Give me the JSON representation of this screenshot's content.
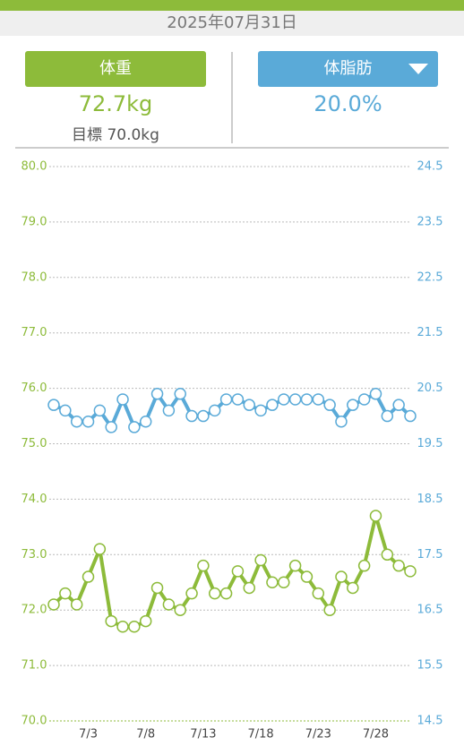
{
  "header": {
    "date": "2025年07月31日"
  },
  "weight_tab": {
    "label": "体重",
    "value": "72.7kg",
    "target": "目標 70.0kg"
  },
  "fat_tab": {
    "label": "体脂肪",
    "value": "20.0%"
  },
  "chart_data": {
    "type": "line",
    "categories": [
      null,
      null,
      null,
      "7/3",
      null,
      null,
      null,
      null,
      "7/8",
      null,
      null,
      null,
      null,
      "7/13",
      null,
      null,
      null,
      null,
      "7/18",
      null,
      null,
      null,
      null,
      "7/23",
      null,
      null,
      null,
      null,
      "7/28",
      null,
      null,
      null
    ],
    "series": [
      {
        "name": "体重",
        "color": "#8dbb3a",
        "axis": "y",
        "values": [
          72.1,
          72.3,
          72.1,
          72.6,
          73.1,
          71.8,
          71.7,
          71.7,
          71.8,
          72.4,
          72.1,
          72.0,
          72.3,
          72.8,
          72.3,
          72.3,
          72.7,
          72.4,
          72.9,
          72.5,
          72.5,
          72.8,
          72.6,
          72.3,
          72.0,
          72.6,
          72.4,
          72.8,
          73.7,
          73.0,
          72.8,
          72.7
        ]
      },
      {
        "name": "体脂肪",
        "color": "#5aaad8",
        "axis": "y2",
        "values": [
          20.2,
          20.1,
          19.9,
          19.9,
          20.1,
          19.8,
          20.3,
          19.8,
          19.9,
          20.4,
          20.1,
          20.4,
          20.0,
          20.0,
          20.1,
          20.3,
          20.3,
          20.2,
          20.1,
          20.2,
          20.3,
          20.3,
          20.3,
          20.3,
          20.2,
          19.9,
          20.2,
          20.3,
          20.4,
          20.0,
          20.2,
          20.0
        ]
      }
    ],
    "ylim": [
      70,
      80
    ],
    "yticks": [
      {
        "value": 70,
        "label": "70.0"
      },
      {
        "value": 71,
        "label": "71.0"
      },
      {
        "value": 72,
        "label": "72.0"
      },
      {
        "value": 73,
        "label": "73.0"
      },
      {
        "value": 74,
        "label": "74.0"
      },
      {
        "value": 75,
        "label": "75.0"
      },
      {
        "value": 76,
        "label": "76.0"
      },
      {
        "value": 77,
        "label": "77.0"
      },
      {
        "value": 78,
        "label": "78.0"
      },
      {
        "value": 79,
        "label": "79.0"
      },
      {
        "value": 80,
        "label": "80.0"
      }
    ],
    "y2lim": [
      14.5,
      24.5
    ],
    "y2ticks": [
      14.5,
      15.5,
      16.5,
      17.5,
      18.5,
      19.5,
      20.5,
      21.5,
      22.5,
      23.5,
      24.5
    ],
    "grid": true
  }
}
